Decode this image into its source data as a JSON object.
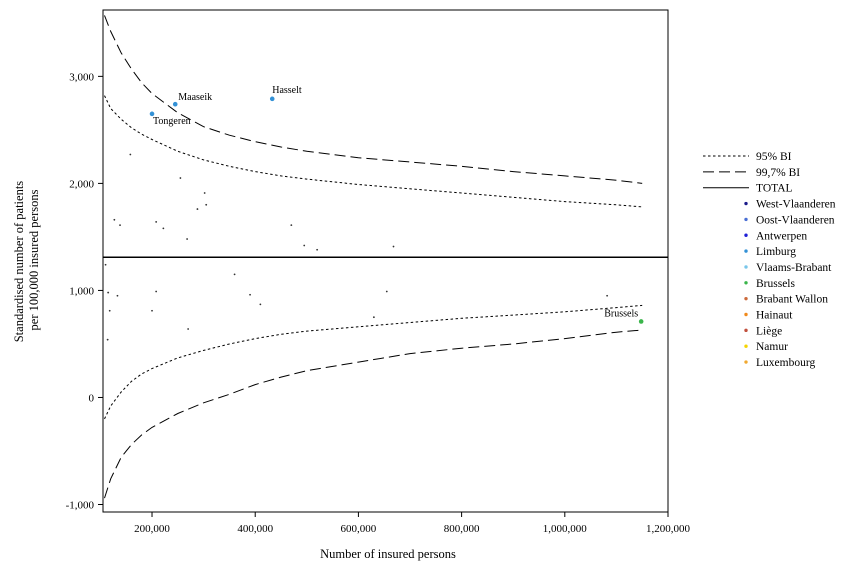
{
  "chart_data": {
    "type": "scatter",
    "title": "",
    "xlabel": "Number of insured persons",
    "ylabel_lines": [
      "Standardised number of patients",
      "per 100,000 insured persons"
    ],
    "xlim": [
      105000,
      1200000
    ],
    "ylim": [
      -1070,
      3620
    ],
    "x_ticks": [
      200000,
      400000,
      600000,
      800000,
      1000000,
      1200000
    ],
    "x_tick_labels": [
      "200,000",
      "400,000",
      "600,000",
      "800,000",
      "1,000,000",
      "1,200,000"
    ],
    "y_ticks": [
      -1000,
      0,
      1000,
      2000,
      3000
    ],
    "y_tick_labels": [
      "-1,000",
      "0",
      "1,000",
      "2,000",
      "3,000"
    ],
    "grid": false,
    "legend_position": "right",
    "total": 1310,
    "reference_lines": [
      {
        "name": "95% BI",
        "style": "dotted",
        "upper": [
          [
            108000,
            2820
          ],
          [
            120000,
            2700
          ],
          [
            140000,
            2600
          ],
          [
            160000,
            2520
          ],
          [
            180000,
            2460
          ],
          [
            200000,
            2410
          ],
          [
            250000,
            2300
          ],
          [
            300000,
            2220
          ],
          [
            350000,
            2160
          ],
          [
            400000,
            2110
          ],
          [
            450000,
            2070
          ],
          [
            500000,
            2040
          ],
          [
            600000,
            1990
          ],
          [
            700000,
            1950
          ],
          [
            800000,
            1910
          ],
          [
            900000,
            1870
          ],
          [
            1000000,
            1830
          ],
          [
            1100000,
            1800
          ],
          [
            1150000,
            1780
          ]
        ],
        "lower": [
          [
            108000,
            -200
          ],
          [
            120000,
            -80
          ],
          [
            140000,
            50
          ],
          [
            160000,
            150
          ],
          [
            180000,
            220
          ],
          [
            200000,
            270
          ],
          [
            250000,
            370
          ],
          [
            300000,
            440
          ],
          [
            350000,
            500
          ],
          [
            400000,
            550
          ],
          [
            450000,
            590
          ],
          [
            500000,
            620
          ],
          [
            600000,
            660
          ],
          [
            700000,
            700
          ],
          [
            800000,
            740
          ],
          [
            900000,
            770
          ],
          [
            1000000,
            800
          ],
          [
            1100000,
            840
          ],
          [
            1150000,
            860
          ]
        ]
      },
      {
        "name": "99,7% BI",
        "style": "dashed",
        "upper": [
          [
            108000,
            3570
          ],
          [
            120000,
            3420
          ],
          [
            140000,
            3220
          ],
          [
            160000,
            3070
          ],
          [
            180000,
            2940
          ],
          [
            200000,
            2840
          ],
          [
            250000,
            2660
          ],
          [
            300000,
            2530
          ],
          [
            350000,
            2450
          ],
          [
            400000,
            2390
          ],
          [
            450000,
            2340
          ],
          [
            500000,
            2300
          ],
          [
            600000,
            2240
          ],
          [
            700000,
            2200
          ],
          [
            800000,
            2160
          ],
          [
            900000,
            2110
          ],
          [
            1000000,
            2070
          ],
          [
            1100000,
            2030
          ],
          [
            1150000,
            2000
          ]
        ],
        "lower": [
          [
            108000,
            -940
          ],
          [
            120000,
            -760
          ],
          [
            140000,
            -560
          ],
          [
            160000,
            -440
          ],
          [
            180000,
            -350
          ],
          [
            200000,
            -280
          ],
          [
            250000,
            -150
          ],
          [
            300000,
            -50
          ],
          [
            350000,
            30
          ],
          [
            400000,
            120
          ],
          [
            450000,
            190
          ],
          [
            500000,
            250
          ],
          [
            600000,
            330
          ],
          [
            700000,
            410
          ],
          [
            800000,
            460
          ],
          [
            900000,
            500
          ],
          [
            1000000,
            550
          ],
          [
            1100000,
            610
          ],
          [
            1150000,
            630
          ]
        ]
      }
    ],
    "points": [
      {
        "x": 245000,
        "y": 2740,
        "region": "Limburg",
        "label": "Maaseik"
      },
      {
        "x": 433000,
        "y": 2790,
        "region": "Limburg",
        "label": "Hasselt"
      },
      {
        "x": 200000,
        "y": 2650,
        "region": "Limburg",
        "label": "Tongeren"
      },
      {
        "x": 1148000,
        "y": 710,
        "region": "Brussels",
        "label": "Brussels"
      },
      {
        "x": 158000,
        "y": 2270
      },
      {
        "x": 255000,
        "y": 2050
      },
      {
        "x": 302000,
        "y": 1910
      },
      {
        "x": 305000,
        "y": 1800
      },
      {
        "x": 288000,
        "y": 1760
      },
      {
        "x": 127000,
        "y": 1660
      },
      {
        "x": 138000,
        "y": 1610
      },
      {
        "x": 208000,
        "y": 1640
      },
      {
        "x": 222000,
        "y": 1580
      },
      {
        "x": 470000,
        "y": 1610
      },
      {
        "x": 268000,
        "y": 1480
      },
      {
        "x": 495000,
        "y": 1420
      },
      {
        "x": 520000,
        "y": 1380
      },
      {
        "x": 668000,
        "y": 1410
      },
      {
        "x": 110000,
        "y": 1240
      },
      {
        "x": 360000,
        "y": 1150
      },
      {
        "x": 115000,
        "y": 980
      },
      {
        "x": 133000,
        "y": 950
      },
      {
        "x": 208000,
        "y": 990
      },
      {
        "x": 390000,
        "y": 960
      },
      {
        "x": 410000,
        "y": 870
      },
      {
        "x": 655000,
        "y": 990
      },
      {
        "x": 1082000,
        "y": 950
      },
      {
        "x": 118000,
        "y": 810
      },
      {
        "x": 200000,
        "y": 810
      },
      {
        "x": 630000,
        "y": 750
      },
      {
        "x": 270000,
        "y": 640
      },
      {
        "x": 114000,
        "y": 540
      }
    ],
    "legend": [
      {
        "label": "95% BI",
        "kind": "line",
        "style": "dotted"
      },
      {
        "label": "99,7% BI",
        "kind": "line",
        "style": "dashed"
      },
      {
        "label": "TOTAL",
        "kind": "line",
        "style": "solid"
      },
      {
        "label": "West-Vlaanderen",
        "kind": "marker",
        "color": "#1b1b8a"
      },
      {
        "label": "Oost-Vlaanderen",
        "kind": "marker",
        "color": "#4a6fd4"
      },
      {
        "label": "Antwerpen",
        "kind": "marker",
        "color": "#1f1fd6"
      },
      {
        "label": "Limburg",
        "kind": "marker",
        "color": "#3391d6"
      },
      {
        "label": "Vlaams-Brabant",
        "kind": "marker",
        "color": "#79c6ea"
      },
      {
        "label": "Brussels",
        "kind": "marker",
        "color": "#3ab54a"
      },
      {
        "label": "Brabant Wallon",
        "kind": "marker",
        "color": "#cc6a3c"
      },
      {
        "label": "Hainaut",
        "kind": "marker",
        "color": "#f08a1c"
      },
      {
        "label": "Liège",
        "kind": "marker",
        "color": "#c1503d"
      },
      {
        "label": "Namur",
        "kind": "marker",
        "color": "#f5d400"
      },
      {
        "label": "Luxembourg",
        "kind": "marker",
        "color": "#f0a830"
      }
    ]
  }
}
